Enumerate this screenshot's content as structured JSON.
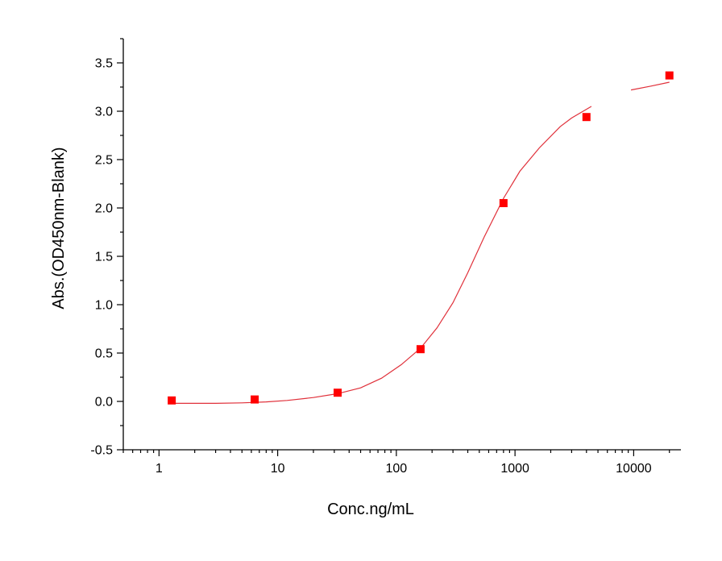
{
  "chart_data": {
    "type": "scatter",
    "title": "",
    "xlabel": "Conc.ng/mL",
    "ylabel": "Abs.(OD450nm-Blank)",
    "x_scale": "log",
    "xlim": [
      0.5,
      25000
    ],
    "ylim": [
      -0.5,
      3.75
    ],
    "x_ticks": [
      1,
      10,
      100,
      1000,
      10000
    ],
    "x_tick_labels": [
      "1",
      "10",
      "100",
      "1000",
      "10000"
    ],
    "y_ticks": [
      -0.5,
      0.0,
      0.5,
      1.0,
      1.5,
      2.0,
      2.5,
      3.0,
      3.5
    ],
    "y_tick_labels": [
      "-0.5",
      "0.0",
      "0.5",
      "1.0",
      "1.5",
      "2.0",
      "2.5",
      "3.0",
      "3.5"
    ],
    "grid": false,
    "legend": "none",
    "series": [
      {
        "kind": "points",
        "marker": "square",
        "color": "#ff0000",
        "x": [
          1.28,
          6.4,
          32,
          160,
          800,
          4000,
          20000
        ],
        "y": [
          0.01,
          0.02,
          0.09,
          0.54,
          2.05,
          2.94,
          3.37
        ]
      },
      {
        "kind": "fit-curve",
        "color": "#e0303a",
        "x": [
          1.28,
          2,
          3,
          5,
          8,
          12,
          20,
          32,
          50,
          75,
          110,
          160,
          220,
          300,
          400,
          550,
          800,
          1100,
          1600,
          2400,
          3000,
          4400,
          9500,
          14000,
          20000
        ],
        "y": [
          -0.02,
          -0.02,
          -0.02,
          -0.015,
          -0.005,
          0.01,
          0.04,
          0.08,
          0.14,
          0.24,
          0.38,
          0.55,
          0.76,
          1.02,
          1.33,
          1.7,
          2.1,
          2.38,
          2.62,
          2.84,
          2.93,
          3.05,
          3.22,
          3.26,
          3.3
        ]
      }
    ]
  }
}
